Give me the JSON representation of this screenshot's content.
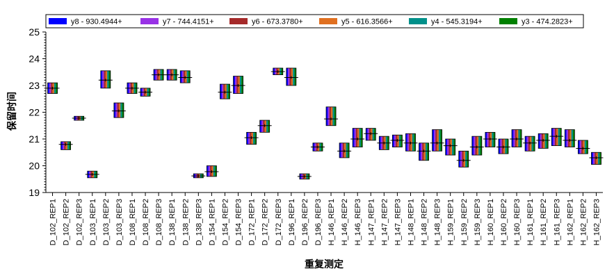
{
  "chart_data": {
    "type": "box",
    "xlabel": "重复测定",
    "ylabel": "保留时间",
    "ylim": [
      19,
      25
    ],
    "yticks": [
      19,
      20,
      21,
      22,
      23,
      24,
      25
    ],
    "legend_position": "top",
    "series": [
      {
        "name": "y8 - 930.4944+",
        "color": "#0000ff"
      },
      {
        "name": "y7 - 744.4151+",
        "color": "#9932e6"
      },
      {
        "name": "y6 - 673.3780+",
        "color": "#a52a2a"
      },
      {
        "name": "y5 - 616.3566+",
        "color": "#e07020"
      },
      {
        "name": "y4 - 545.3194+",
        "color": "#00908a"
      },
      {
        "name": "y3 - 474.2823+",
        "color": "#008000"
      }
    ],
    "categories": [
      "D_102_REP1",
      "D_102_REP2",
      "D_102_REP3",
      "D_103_REP1",
      "D_103_REP2",
      "D_103_REP3",
      "D_108_REP1",
      "D_108_REP2",
      "D_108_REP3",
      "D_138_REP1",
      "D_138_REP2",
      "D_138_REP3",
      "D_154_REP1",
      "D_154_REP2",
      "D_154_REP3",
      "D_172_REP1",
      "D_172_REP2",
      "D_172_REP3",
      "D_196_REP1",
      "D_196_REP2",
      "D_196_REP3",
      "H_146_REP1",
      "H_146_REP2",
      "H_146_REP3",
      "H_147_REP1",
      "H_147_REP2",
      "H_147_REP3",
      "H_148_REP1",
      "H_148_REP2",
      "H_148_REP3",
      "H_159_REP1",
      "H_159_REP2",
      "H_159_REP3",
      "H_160_REP1",
      "H_160_REP2",
      "H_160_REP3",
      "H_161_REP1",
      "H_161_REP2",
      "H_161_REP3",
      "H_162_REP1",
      "H_162_REP2",
      "H_162_REP3"
    ],
    "boxes": [
      {
        "low": 22.7,
        "high": 23.1,
        "median": 22.9
      },
      {
        "low": 20.6,
        "high": 20.9,
        "median": 20.8
      },
      {
        "low": 21.7,
        "high": 21.85,
        "median": 21.78
      },
      {
        "low": 19.55,
        "high": 19.8,
        "median": 19.68
      },
      {
        "low": 22.9,
        "high": 23.55,
        "median": 23.2
      },
      {
        "low": 21.8,
        "high": 22.35,
        "median": 22.05
      },
      {
        "low": 22.7,
        "high": 23.1,
        "median": 22.9
      },
      {
        "low": 22.6,
        "high": 22.9,
        "median": 22.75
      },
      {
        "low": 23.2,
        "high": 23.6,
        "median": 23.4
      },
      {
        "low": 23.2,
        "high": 23.6,
        "median": 23.4
      },
      {
        "low": 23.1,
        "high": 23.55,
        "median": 23.3
      },
      {
        "low": 19.55,
        "high": 19.7,
        "median": 19.62
      },
      {
        "low": 19.6,
        "high": 20.0,
        "median": 19.78
      },
      {
        "low": 22.5,
        "high": 23.05,
        "median": 22.75
      },
      {
        "low": 22.7,
        "high": 23.35,
        "median": 23.0
      },
      {
        "low": 20.8,
        "high": 21.25,
        "median": 21.05
      },
      {
        "low": 21.25,
        "high": 21.7,
        "median": 21.5
      },
      {
        "low": 23.4,
        "high": 23.65,
        "median": 23.52
      },
      {
        "low": 23.0,
        "high": 23.65,
        "median": 23.3
      },
      {
        "low": 19.5,
        "high": 19.7,
        "median": 19.6
      },
      {
        "low": 20.55,
        "high": 20.85,
        "median": 20.7
      },
      {
        "low": 21.5,
        "high": 22.2,
        "median": 21.75
      },
      {
        "low": 20.3,
        "high": 20.85,
        "median": 20.55
      },
      {
        "low": 20.7,
        "high": 21.4,
        "median": 21.0
      },
      {
        "low": 20.95,
        "high": 21.4,
        "median": 21.2
      },
      {
        "low": 20.6,
        "high": 21.1,
        "median": 20.85
      },
      {
        "low": 20.7,
        "high": 21.15,
        "median": 20.95
      },
      {
        "low": 20.55,
        "high": 21.2,
        "median": 20.85
      },
      {
        "low": 20.2,
        "high": 20.85,
        "median": 20.55
      },
      {
        "low": 20.55,
        "high": 21.35,
        "median": 20.85
      },
      {
        "low": 20.4,
        "high": 21.0,
        "median": 20.75
      },
      {
        "low": 19.95,
        "high": 20.55,
        "median": 20.2
      },
      {
        "low": 20.4,
        "high": 21.1,
        "median": 20.7
      },
      {
        "low": 20.7,
        "high": 21.25,
        "median": 21.0
      },
      {
        "low": 20.45,
        "high": 21.0,
        "median": 20.7
      },
      {
        "low": 20.7,
        "high": 21.35,
        "median": 21.0
      },
      {
        "low": 20.55,
        "high": 21.1,
        "median": 20.85
      },
      {
        "low": 20.65,
        "high": 21.2,
        "median": 20.95
      },
      {
        "low": 20.75,
        "high": 21.4,
        "median": 21.1
      },
      {
        "low": 20.7,
        "high": 21.35,
        "median": 20.95
      },
      {
        "low": 20.45,
        "high": 20.95,
        "median": 20.65
      },
      {
        "low": 20.05,
        "high": 20.5,
        "median": 20.3
      }
    ]
  }
}
